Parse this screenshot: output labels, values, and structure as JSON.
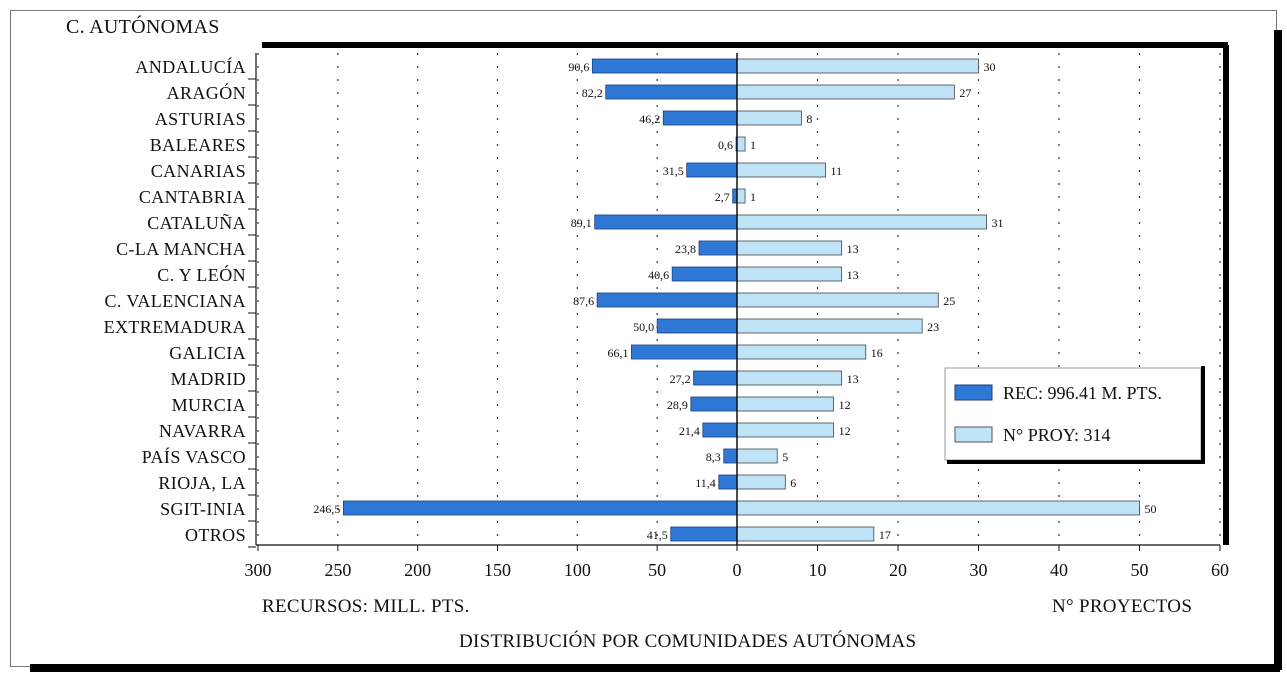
{
  "chart_data": {
    "type": "bar",
    "title": "DISTRIBUCIÓN POR COMUNIDADES AUTÓNOMAS",
    "category_axis_label": "C. AUTÓNOMAS",
    "left_axis_label": "RECURSOS: MILL. PTS.",
    "right_axis_label": "N° PROYECTOS",
    "left_ticks": [
      "300",
      "250",
      "200",
      "150",
      "100",
      "50",
      "0"
    ],
    "right_ticks": [
      "10",
      "20",
      "30",
      "40",
      "50",
      "60"
    ],
    "left_range": [
      0,
      300
    ],
    "right_range": [
      0,
      60
    ],
    "grid": "dotted vertical",
    "legend_position": "right",
    "categories": [
      "ANDALUCÍA",
      "ARAGÓN",
      "ASTURIAS",
      "BALEARES",
      "CANARIAS",
      "CANTABRIA",
      "CATALUÑA",
      "C-LA MANCHA",
      "C. Y LEÓN",
      "C. VALENCIANA",
      "EXTREMADURA",
      "GALICIA",
      "MADRID",
      "MURCIA",
      "NAVARRA",
      "PAÍS VASCO",
      "RIOJA, LA",
      "SGIT-INIA",
      "OTROS"
    ],
    "series": [
      {
        "name": "REC: 996.41 M. PTS.",
        "color": "#2f78d6",
        "values": [
          90.6,
          82.2,
          46.2,
          0.6,
          31.5,
          2.7,
          89.1,
          23.8,
          40.6,
          87.6,
          50.0,
          66.1,
          27.2,
          28.9,
          21.4,
          8.3,
          11.4,
          246.5,
          41.5
        ],
        "labels": [
          "90,6",
          "82,2",
          "46,2",
          "0,6",
          "31,5",
          "2,7",
          "89,1",
          "23,8",
          "40,6",
          "87,6",
          "50,0",
          "66,1",
          "27,2",
          "28,9",
          "21,4",
          "8,3",
          "11,4",
          "246,5",
          "41,5"
        ]
      },
      {
        "name": "N° PROY: 314",
        "color": "#bfe3f7",
        "values": [
          30,
          27,
          8,
          1,
          11,
          1,
          31,
          13,
          13,
          25,
          23,
          16,
          13,
          12,
          12,
          5,
          6,
          50,
          17
        ],
        "labels": [
          "30",
          "27",
          "8",
          "1",
          "11",
          "1",
          "31",
          "13",
          "13",
          "25",
          "23",
          "16",
          "13",
          "12",
          "12",
          "5",
          "6",
          "50",
          "17"
        ]
      }
    ]
  }
}
